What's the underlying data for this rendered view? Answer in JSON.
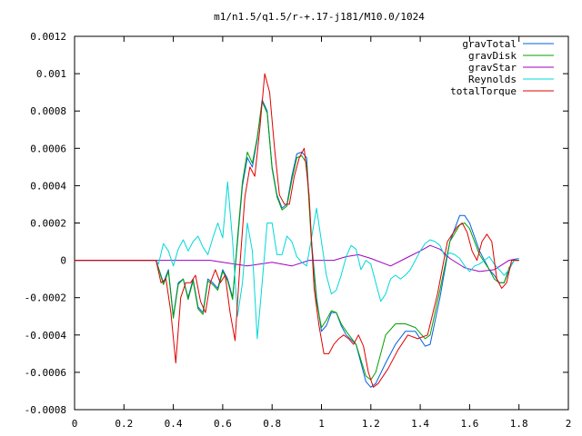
{
  "chart_data": {
    "type": "line",
    "title": "m1/n1.5/q1.5/r-+.17-j181/M10.0/1024",
    "xlabel": "",
    "ylabel": "",
    "xlim": [
      0,
      2
    ],
    "ylim": [
      -0.0008,
      0.0012
    ],
    "grid": false,
    "legend_position": "top-right",
    "x_ticks": [
      0,
      0.2,
      0.4,
      0.6,
      0.8,
      1,
      1.2,
      1.4,
      1.6,
      1.8,
      2
    ],
    "x_tick_labels": [
      "0",
      "0.2",
      "0.4",
      "0.6",
      "0.8",
      "1",
      "1.2",
      "1.4",
      "1.6",
      "1.8",
      "2"
    ],
    "y_ticks": [
      -0.0008,
      -0.0006,
      -0.0004,
      -0.0002,
      0,
      0.0002,
      0.0004,
      0.0006,
      0.0008,
      0.001,
      0.0012
    ],
    "y_tick_labels": [
      "-0.0008",
      "-0.0006",
      "-0.0004",
      "-0.0002",
      "0",
      "0.0002",
      "0.0004",
      "0.0006",
      "0.0008",
      "0.001",
      "0.0012"
    ],
    "series": [
      {
        "name": "gravTotal",
        "color": "#0060e0",
        "points": [
          [
            0,
            0
          ],
          [
            0.33,
            0
          ],
          [
            0.36,
            -0.00012
          ],
          [
            0.38,
            -5e-05
          ],
          [
            0.4,
            -0.0003
          ],
          [
            0.42,
            -0.00012
          ],
          [
            0.44,
            -0.0001
          ],
          [
            0.46,
            -0.0002
          ],
          [
            0.48,
            -0.0001
          ],
          [
            0.5,
            -0.00025
          ],
          [
            0.52,
            -0.00028
          ],
          [
            0.54,
            -0.0001
          ],
          [
            0.56,
            -0.00012
          ],
          [
            0.58,
            -0.00015
          ],
          [
            0.6,
            -5e-05
          ],
          [
            0.62,
            -0.0001
          ],
          [
            0.64,
            -0.0002
          ],
          [
            0.66,
            0.0001
          ],
          [
            0.68,
            0.0004
          ],
          [
            0.7,
            0.00055
          ],
          [
            0.72,
            0.0005
          ],
          [
            0.74,
            0.00065
          ],
          [
            0.76,
            0.00086
          ],
          [
            0.78,
            0.0008
          ],
          [
            0.8,
            0.0005
          ],
          [
            0.82,
            0.00035
          ],
          [
            0.84,
            0.00028
          ],
          [
            0.86,
            0.0003
          ],
          [
            0.88,
            0.00045
          ],
          [
            0.9,
            0.00057
          ],
          [
            0.92,
            0.00058
          ],
          [
            0.94,
            0.00055
          ],
          [
            0.96,
            0.0001
          ],
          [
            0.98,
            -0.0002
          ],
          [
            1.0,
            -0.00038
          ],
          [
            1.02,
            -0.00035
          ],
          [
            1.04,
            -0.00028
          ],
          [
            1.06,
            -0.00028
          ],
          [
            1.08,
            -0.00035
          ],
          [
            1.1,
            -0.0004
          ],
          [
            1.14,
            -0.00045
          ],
          [
            1.18,
            -0.00065
          ],
          [
            1.2,
            -0.00068
          ],
          [
            1.22,
            -0.00066
          ],
          [
            1.26,
            -0.00055
          ],
          [
            1.3,
            -0.00045
          ],
          [
            1.34,
            -0.00038
          ],
          [
            1.38,
            -0.00038
          ],
          [
            1.42,
            -0.00046
          ],
          [
            1.44,
            -0.00045
          ],
          [
            1.48,
            -0.0002
          ],
          [
            1.52,
            0.0001
          ],
          [
            1.56,
            0.00024
          ],
          [
            1.58,
            0.00024
          ],
          [
            1.6,
            0.0002
          ],
          [
            1.64,
            5e-05
          ],
          [
            1.68,
            -5e-05
          ],
          [
            1.7,
            -8e-05
          ],
          [
            1.72,
            -0.00012
          ],
          [
            1.74,
            -0.00012
          ],
          [
            1.76,
            -5e-05
          ],
          [
            1.78,
            0
          ],
          [
            1.8,
            0
          ]
        ]
      },
      {
        "name": "gravDisk",
        "color": "#00a000",
        "points": [
          [
            0,
            0
          ],
          [
            0.33,
            0
          ],
          [
            0.36,
            -0.00013
          ],
          [
            0.38,
            -6e-05
          ],
          [
            0.4,
            -0.00031
          ],
          [
            0.42,
            -0.00013
          ],
          [
            0.44,
            -0.0001
          ],
          [
            0.46,
            -0.00021
          ],
          [
            0.48,
            -0.00011
          ],
          [
            0.5,
            -0.00026
          ],
          [
            0.52,
            -0.00029
          ],
          [
            0.54,
            -0.00011
          ],
          [
            0.56,
            -0.00013
          ],
          [
            0.58,
            -0.00016
          ],
          [
            0.6,
            -6e-05
          ],
          [
            0.62,
            -0.00011
          ],
          [
            0.64,
            -0.00021
          ],
          [
            0.66,
            0.00012
          ],
          [
            0.68,
            0.00042
          ],
          [
            0.7,
            0.00058
          ],
          [
            0.72,
            0.00052
          ],
          [
            0.74,
            0.00066
          ],
          [
            0.76,
            0.00085
          ],
          [
            0.78,
            0.00079
          ],
          [
            0.8,
            0.00049
          ],
          [
            0.82,
            0.00034
          ],
          [
            0.84,
            0.00027
          ],
          [
            0.86,
            0.00029
          ],
          [
            0.88,
            0.00043
          ],
          [
            0.9,
            0.00055
          ],
          [
            0.92,
            0.00056
          ],
          [
            0.94,
            0.00052
          ],
          [
            0.96,
            8e-05
          ],
          [
            0.98,
            -0.00022
          ],
          [
            1.0,
            -0.00036
          ],
          [
            1.02,
            -0.00032
          ],
          [
            1.04,
            -0.00027
          ],
          [
            1.06,
            -0.00028
          ],
          [
            1.08,
            -0.00034
          ],
          [
            1.1,
            -0.00038
          ],
          [
            1.14,
            -0.00045
          ],
          [
            1.18,
            -0.00062
          ],
          [
            1.2,
            -0.00064
          ],
          [
            1.22,
            -0.0006
          ],
          [
            1.26,
            -0.0004
          ],
          [
            1.3,
            -0.00034
          ],
          [
            1.34,
            -0.00034
          ],
          [
            1.38,
            -0.00036
          ],
          [
            1.42,
            -0.00042
          ],
          [
            1.44,
            -0.0004
          ],
          [
            1.48,
            -0.00016
          ],
          [
            1.52,
            0.0001
          ],
          [
            1.56,
            0.00019
          ],
          [
            1.58,
            0.0002
          ],
          [
            1.6,
            0.00017
          ],
          [
            1.64,
            3e-05
          ],
          [
            1.68,
            -5e-05
          ],
          [
            1.7,
            -0.0001
          ],
          [
            1.72,
            -0.00012
          ],
          [
            1.74,
            -0.00012
          ],
          [
            1.76,
            -4e-05
          ],
          [
            1.78,
            0
          ],
          [
            1.8,
            0
          ]
        ]
      },
      {
        "name": "gravStar",
        "color": "#a000c0",
        "points": [
          [
            0,
            0
          ],
          [
            0.55,
            0
          ],
          [
            0.6,
            -1e-05
          ],
          [
            0.7,
            -3e-05
          ],
          [
            0.8,
            -1e-05
          ],
          [
            0.88,
            -3e-05
          ],
          [
            0.95,
            0
          ],
          [
            1.0,
            0
          ],
          [
            1.05,
            0
          ],
          [
            1.1,
            2e-05
          ],
          [
            1.15,
            3e-05
          ],
          [
            1.2,
            1e-05
          ],
          [
            1.28,
            -3e-05
          ],
          [
            1.34,
            1e-05
          ],
          [
            1.4,
            5e-05
          ],
          [
            1.44,
            8e-05
          ],
          [
            1.48,
            6e-05
          ],
          [
            1.52,
            1e-05
          ],
          [
            1.58,
            -4e-05
          ],
          [
            1.64,
            -6e-05
          ],
          [
            1.7,
            -5e-05
          ],
          [
            1.76,
            0
          ],
          [
            1.8,
            1e-05
          ]
        ]
      },
      {
        "name": "Reynolds",
        "color": "#00d8d8",
        "points": [
          [
            0.33,
            0
          ],
          [
            0.34,
            -2e-05
          ],
          [
            0.36,
            9e-05
          ],
          [
            0.38,
            5e-05
          ],
          [
            0.4,
            -3e-05
          ],
          [
            0.42,
            6e-05
          ],
          [
            0.44,
            0.00011
          ],
          [
            0.46,
            5e-05
          ],
          [
            0.48,
            0.0001
          ],
          [
            0.5,
            0.00013
          ],
          [
            0.52,
            7e-05
          ],
          [
            0.54,
            3e-05
          ],
          [
            0.56,
            0.00012
          ],
          [
            0.58,
            0.0002
          ],
          [
            0.6,
            0.00012
          ],
          [
            0.62,
            0.00042
          ],
          [
            0.64,
            0.0001
          ],
          [
            0.66,
            -0.0003
          ],
          [
            0.68,
            -0.00012
          ],
          [
            0.7,
            0.0002
          ],
          [
            0.72,
            5e-05
          ],
          [
            0.74,
            -0.00042
          ],
          [
            0.76,
            -0.00012
          ],
          [
            0.78,
            0.0002
          ],
          [
            0.8,
            0.0002
          ],
          [
            0.82,
            3e-05
          ],
          [
            0.84,
            3e-05
          ],
          [
            0.86,
            0.00013
          ],
          [
            0.88,
            0.0001
          ],
          [
            0.9,
            2e-05
          ],
          [
            0.92,
            -1e-05
          ],
          [
            0.94,
            -3e-05
          ],
          [
            0.96,
            0.00012
          ],
          [
            0.98,
            0.00028
          ],
          [
            1.0,
            0.0001
          ],
          [
            1.02,
            -8e-05
          ],
          [
            1.04,
            -0.00018
          ],
          [
            1.06,
            -0.00016
          ],
          [
            1.08,
            -8e-05
          ],
          [
            1.1,
            2e-05
          ],
          [
            1.12,
            8e-05
          ],
          [
            1.14,
            6e-05
          ],
          [
            1.16,
            -5e-05
          ],
          [
            1.18,
            0
          ],
          [
            1.2,
            -2e-05
          ],
          [
            1.22,
            -0.00012
          ],
          [
            1.24,
            -0.00022
          ],
          [
            1.26,
            -0.00018
          ],
          [
            1.28,
            -0.0001
          ],
          [
            1.3,
            -8e-05
          ],
          [
            1.32,
            -0.0001
          ],
          [
            1.34,
            -8e-05
          ],
          [
            1.36,
            -5e-05
          ],
          [
            1.38,
            0
          ],
          [
            1.4,
            5e-05
          ],
          [
            1.42,
            9e-05
          ],
          [
            1.44,
            0.00011
          ],
          [
            1.46,
            0.0001
          ],
          [
            1.48,
            8e-05
          ],
          [
            1.5,
            2e-05
          ],
          [
            1.52,
            4e-05
          ],
          [
            1.54,
            3e-05
          ],
          [
            1.56,
            1e-05
          ],
          [
            1.58,
            -3e-05
          ],
          [
            1.6,
            -6e-05
          ],
          [
            1.62,
            -3e-05
          ],
          [
            1.64,
            -2e-05
          ],
          [
            1.66,
            0
          ],
          [
            1.68,
            2e-05
          ],
          [
            1.7,
            -2e-05
          ],
          [
            1.72,
            -5e-05
          ],
          [
            1.74,
            -8e-05
          ],
          [
            1.76,
            -5e-05
          ],
          [
            1.78,
            0
          ],
          [
            1.8,
            1e-05
          ]
        ]
      },
      {
        "name": "totalTorque",
        "color": "#e00000",
        "points": [
          [
            0,
            0
          ],
          [
            0.33,
            0
          ],
          [
            0.35,
            -0.00012
          ],
          [
            0.37,
            -0.0001
          ],
          [
            0.39,
            -0.00028
          ],
          [
            0.41,
            -0.00055
          ],
          [
            0.43,
            -0.0002
          ],
          [
            0.45,
            -0.00012
          ],
          [
            0.47,
            -0.00012
          ],
          [
            0.49,
            -8e-05
          ],
          [
            0.51,
            -0.00022
          ],
          [
            0.53,
            -0.00028
          ],
          [
            0.55,
            -0.00012
          ],
          [
            0.57,
            -5e-05
          ],
          [
            0.59,
            -0.00012
          ],
          [
            0.61,
            -8e-05
          ],
          [
            0.63,
            -0.00028
          ],
          [
            0.65,
            -0.00043
          ],
          [
            0.67,
            -2e-05
          ],
          [
            0.69,
            0.00034
          ],
          [
            0.71,
            0.0005
          ],
          [
            0.73,
            0.00045
          ],
          [
            0.75,
            0.0007
          ],
          [
            0.77,
            0.001
          ],
          [
            0.79,
            0.0009
          ],
          [
            0.81,
            0.0006
          ],
          [
            0.83,
            0.00035
          ],
          [
            0.85,
            0.0003
          ],
          [
            0.87,
            0.0003
          ],
          [
            0.89,
            0.00045
          ],
          [
            0.91,
            0.00055
          ],
          [
            0.93,
            0.0006
          ],
          [
            0.95,
            0.00035
          ],
          [
            0.97,
            -0.00015
          ],
          [
            0.99,
            -0.00035
          ],
          [
            1.01,
            -0.0005
          ],
          [
            1.03,
            -0.0005
          ],
          [
            1.05,
            -0.00045
          ],
          [
            1.07,
            -0.00042
          ],
          [
            1.09,
            -0.0004
          ],
          [
            1.11,
            -0.00042
          ],
          [
            1.13,
            -0.00045
          ],
          [
            1.15,
            -0.0004
          ],
          [
            1.17,
            -0.00046
          ],
          [
            1.19,
            -0.0006
          ],
          [
            1.21,
            -0.00068
          ],
          [
            1.23,
            -0.00066
          ],
          [
            1.27,
            -0.00058
          ],
          [
            1.31,
            -0.00048
          ],
          [
            1.35,
            -0.0004
          ],
          [
            1.39,
            -0.00042
          ],
          [
            1.43,
            -0.0004
          ],
          [
            1.47,
            -0.00018
          ],
          [
            1.51,
            0.0001
          ],
          [
            1.55,
            0.00018
          ],
          [
            1.57,
            0.0002
          ],
          [
            1.59,
            0.00015
          ],
          [
            1.61,
            5e-05
          ],
          [
            1.63,
            0
          ],
          [
            1.65,
            0.0001
          ],
          [
            1.67,
            0.00014
          ],
          [
            1.69,
            0.0001
          ],
          [
            1.71,
            -0.0001
          ],
          [
            1.73,
            -0.00015
          ],
          [
            1.75,
            -0.00012
          ],
          [
            1.77,
            0
          ],
          [
            1.8,
            0
          ]
        ]
      }
    ]
  }
}
